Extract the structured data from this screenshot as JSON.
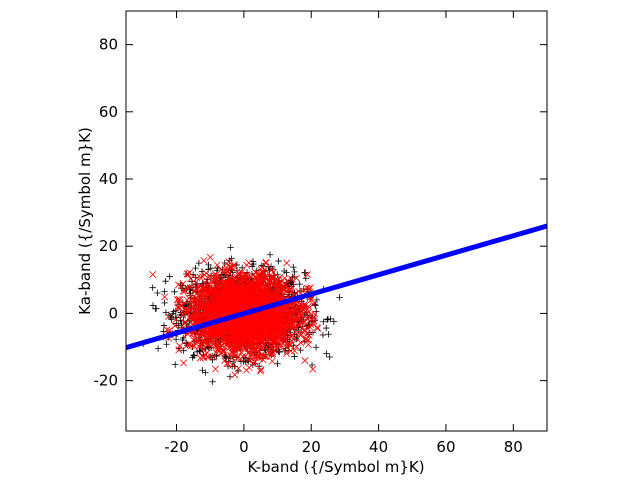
{
  "chart_data": {
    "type": "scatter",
    "title": "",
    "xlabel": "K-band ({/Symbol m}K)",
    "ylabel": "Ka-band ({/Symbol m}K)",
    "xlim": [
      -35,
      90
    ],
    "ylim": [
      -35,
      90
    ],
    "xticks": [
      -20,
      0,
      20,
      40,
      60,
      80
    ],
    "yticks": [
      -20,
      0,
      20,
      40,
      60,
      80
    ],
    "xtick_labels": [
      "-20",
      "0",
      "20",
      "40",
      "60",
      "80"
    ],
    "ytick_labels": [
      "-20",
      "0",
      "20",
      "40",
      "60",
      "80"
    ],
    "grid": false,
    "legend": "none",
    "series": [
      {
        "marker": "plus",
        "color": "#000000",
        "distribution": {
          "center": [
            0,
            0
          ],
          "sigma_x": 9,
          "sigma_y": 6,
          "count": 1800,
          "x_range": [
            -30,
            32
          ],
          "y_range": [
            -21,
            22
          ]
        }
      },
      {
        "marker": "cross",
        "color": "#ff0000",
        "distribution": {
          "center": [
            0,
            0
          ],
          "sigma_x": 8,
          "sigma_y": 5.5,
          "count": 2600,
          "x_range": [
            -35,
            22
          ],
          "y_range": [
            -20,
            18
          ]
        }
      },
      {
        "type": "line",
        "color": "#0000ff",
        "points": [
          [
            -35,
            -10.2
          ],
          [
            90,
            26.0
          ]
        ]
      }
    ]
  }
}
